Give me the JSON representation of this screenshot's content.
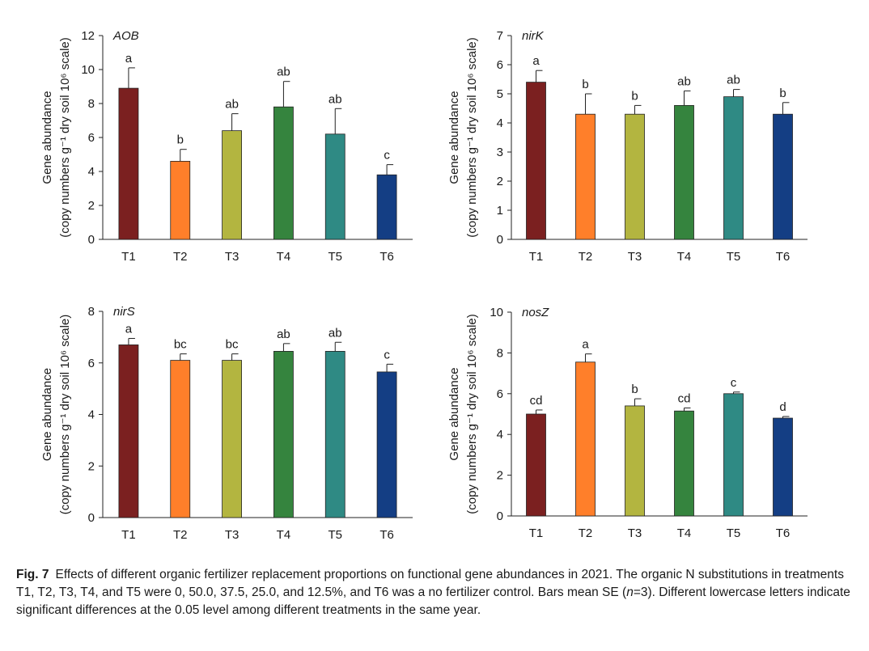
{
  "colors": [
    "#7b2020",
    "#ff7f2a",
    "#b3b540",
    "#35843e",
    "#2f8a84",
    "#143e84"
  ],
  "categories": [
    "T1",
    "T2",
    "T3",
    "T4",
    "T5",
    "T6"
  ],
  "chart_data": [
    {
      "type": "bar",
      "title": "AOB",
      "ylabel_line1": "Gene abundance",
      "ylabel_line2": "(copy numbers g⁻¹ dry soil 10⁶ scale)",
      "ylim": [
        0,
        12
      ],
      "yticks": [
        0,
        2,
        4,
        6,
        8,
        10,
        12
      ],
      "categories": [
        "T1",
        "T2",
        "T3",
        "T4",
        "T5",
        "T6"
      ],
      "values": [
        8.9,
        4.6,
        6.4,
        7.8,
        6.2,
        3.8
      ],
      "errors": [
        1.2,
        0.7,
        1.0,
        1.5,
        1.5,
        0.6
      ],
      "letters": [
        "a",
        "b",
        "ab",
        "ab",
        "ab",
        "c"
      ]
    },
    {
      "type": "bar",
      "title": "nirK",
      "ylabel_line1": "Gene abundance",
      "ylabel_line2": "(copy numbers g⁻¹ dry soil 10⁶ scale)",
      "ylim": [
        0,
        7
      ],
      "yticks": [
        0,
        1,
        2,
        3,
        4,
        5,
        6,
        7
      ],
      "categories": [
        "T1",
        "T2",
        "T3",
        "T4",
        "T5",
        "T6"
      ],
      "values": [
        5.4,
        4.3,
        4.3,
        4.6,
        4.9,
        4.3
      ],
      "errors": [
        0.4,
        0.7,
        0.3,
        0.5,
        0.25,
        0.4
      ],
      "letters": [
        "a",
        "b",
        "b",
        "ab",
        "ab",
        "b"
      ]
    },
    {
      "type": "bar",
      "title": "nirS",
      "ylabel_line1": "Gene abundance",
      "ylabel_line2": "(copy numbers g⁻¹ dry soil 10⁶ scale)",
      "ylim": [
        0,
        8
      ],
      "yticks": [
        0,
        2,
        4,
        6,
        8
      ],
      "categories": [
        "T1",
        "T2",
        "T3",
        "T4",
        "T5",
        "T6"
      ],
      "values": [
        6.7,
        6.1,
        6.1,
        6.45,
        6.45,
        5.65
      ],
      "errors": [
        0.25,
        0.25,
        0.25,
        0.3,
        0.35,
        0.3
      ],
      "letters": [
        "a",
        "bc",
        "bc",
        "ab",
        "ab",
        "c"
      ]
    },
    {
      "type": "bar",
      "title": "nosZ",
      "ylabel_line1": "Gene abundance",
      "ylabel_line2": "(copy numbers g⁻¹ dry soil 10⁶ scale)",
      "ylim": [
        0,
        10
      ],
      "yticks": [
        0,
        2,
        4,
        6,
        8,
        10
      ],
      "categories": [
        "T1",
        "T2",
        "T3",
        "T4",
        "T5",
        "T6"
      ],
      "values": [
        5.0,
        7.55,
        5.4,
        5.15,
        6.0,
        4.8
      ],
      "errors": [
        0.2,
        0.4,
        0.35,
        0.15,
        0.08,
        0.08
      ],
      "letters": [
        "cd",
        "a",
        "b",
        "cd",
        "c",
        "d"
      ]
    }
  ],
  "caption": {
    "label": "Fig. 7",
    "text_part1": "Effects of different organic fertilizer replacement proportions on functional gene abundances in 2021.  The organic N substitutions in treatments T1, T2, T3, T4, and T5 were 0, 50.0, 37.5, 25.0, and 12.5%, and T6 was a no fertilizer control.  Bars mean SE (",
    "n_italic": "n",
    "text_part2": "=3).  Different lowercase letters indicate significant differences at the 0.05 level among different treatments in the same year."
  }
}
